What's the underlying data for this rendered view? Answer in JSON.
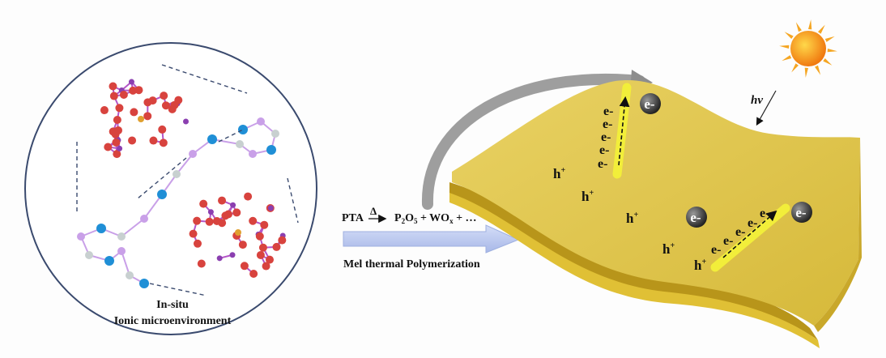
{
  "left_panel": {
    "caption_line1": "In-situ",
    "caption_line2": "Ionic microenvironment"
  },
  "reaction": {
    "reactant": "PTA",
    "heat_symbol": "Δ",
    "products_p": "P",
    "products_p_sub": "2",
    "products_o": "O",
    "products_o_sub": "5",
    "products_plus1": " + WO",
    "products_w_sub": "x",
    "products_rest": " + …",
    "process_label": "Mel thermal Polymerization"
  },
  "right_panel": {
    "light_label": "hv",
    "hole_label": "h",
    "hole_charge": "+",
    "electron_label": "e",
    "electron_charge": "-"
  },
  "colors": {
    "sheet": "#e2c743",
    "sheet_dark": "#b8951a",
    "rod": "#f2ee3a",
    "arrow": "#b8c6ee",
    "oxygen": "#d8433e",
    "bond_purple": "#b455c8",
    "nitrogen": "#1f8fd6",
    "carbon": "#c9a0e8",
    "hydrogen": "#c8d0d0"
  }
}
